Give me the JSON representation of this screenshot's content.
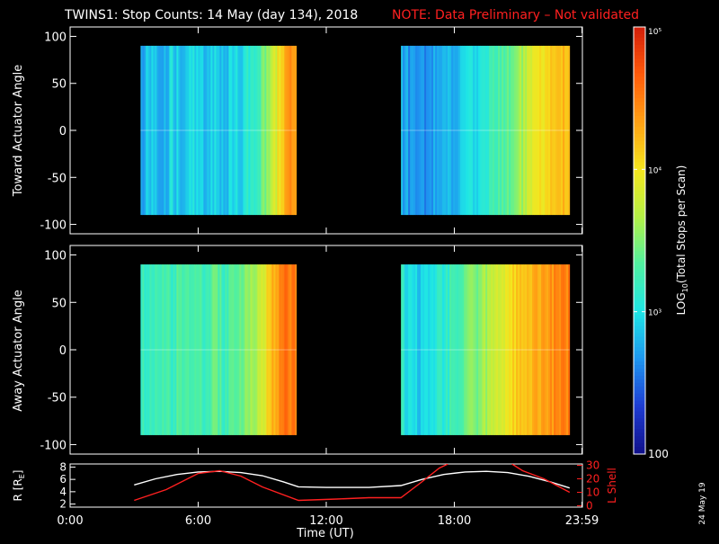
{
  "title": {
    "main": "TWINS1: Stop Counts: 14 May (day 134), 2018",
    "note": "NOTE: Data Preliminary – Not validated"
  },
  "colors": {
    "background": "#000000",
    "text": "#ffffff",
    "note": "#ff2020",
    "radius_line": "#ffffff",
    "lshell_line": "#ff2020"
  },
  "colorbar": {
    "label": "LOG10(Total Stops per Scan)",
    "label_base": "LOG",
    "label_sub": "10",
    "label_rest": "(Total Stops per Scan)",
    "tick_labels": [
      "100",
      "10³",
      "10⁴",
      "10⁵"
    ],
    "tick_values": [
      100,
      1000,
      10000,
      100000
    ],
    "range": [
      100,
      100000
    ],
    "scale": "log",
    "colormap": [
      "#10108a",
      "#1e3cd2",
      "#1e96f0",
      "#1ee6e6",
      "#50f0a0",
      "#b4f046",
      "#f5e61e",
      "#ffa014",
      "#ff5a0a",
      "#d21e0a"
    ]
  },
  "footer": {
    "date_stamp": "24 May 19"
  },
  "chart_data": [
    {
      "type": "heatmap",
      "panel": "toward",
      "ylabel": "Toward Actuator Angle",
      "ylim": [
        -110,
        110
      ],
      "yticks": [
        100,
        50,
        0,
        -50,
        -100
      ],
      "xlim": [
        0,
        24
      ],
      "x_ticks_shown": false,
      "segments": [
        {
          "x_start": 3.3,
          "x_end": 10.6,
          "y_range": [
            -90,
            90
          ]
        },
        {
          "x_start": 15.5,
          "x_end": 23.4,
          "y_range": [
            -90,
            90
          ]
        }
      ],
      "profile": [
        [
          3.3,
          2.75
        ],
        [
          3.6,
          2.85
        ],
        [
          4.0,
          2.9
        ],
        [
          4.4,
          2.8
        ],
        [
          4.8,
          2.95
        ],
        [
          5.2,
          2.85
        ],
        [
          5.6,
          3.0
        ],
        [
          6.0,
          2.9
        ],
        [
          6.4,
          2.8
        ],
        [
          6.8,
          3.0
        ],
        [
          7.2,
          2.8
        ],
        [
          7.6,
          2.95
        ],
        [
          8.0,
          2.9
        ],
        [
          8.4,
          3.1
        ],
        [
          8.8,
          3.25
        ],
        [
          9.2,
          3.5
        ],
        [
          9.6,
          3.8
        ],
        [
          10.0,
          4.2
        ],
        [
          10.3,
          4.4
        ],
        [
          10.6,
          4.45
        ],
        [
          15.5,
          2.8
        ],
        [
          15.8,
          2.7
        ],
        [
          16.2,
          2.6
        ],
        [
          16.6,
          2.65
        ],
        [
          17.0,
          2.7
        ],
        [
          17.4,
          2.75
        ],
        [
          17.8,
          2.8
        ],
        [
          18.2,
          2.85
        ],
        [
          18.6,
          2.9
        ],
        [
          19.0,
          3.0
        ],
        [
          19.4,
          3.1
        ],
        [
          19.8,
          3.2
        ],
        [
          20.2,
          3.3
        ],
        [
          20.6,
          3.4
        ],
        [
          21.0,
          3.55
        ],
        [
          21.4,
          3.7
        ],
        [
          21.8,
          3.9
        ],
        [
          22.2,
          4.0
        ],
        [
          22.6,
          4.1
        ],
        [
          23.0,
          4.2
        ],
        [
          23.4,
          4.3
        ]
      ]
    },
    {
      "type": "heatmap",
      "panel": "away",
      "ylabel": "Away Actuator Angle",
      "ylim": [
        -110,
        110
      ],
      "yticks": [
        100,
        50,
        0,
        -50,
        -100
      ],
      "xlim": [
        0,
        24
      ],
      "x_ticks_shown": false,
      "segments": [
        {
          "x_start": 3.3,
          "x_end": 10.6,
          "y_range": [
            -90,
            90
          ]
        },
        {
          "x_start": 15.5,
          "x_end": 23.4,
          "y_range": [
            -90,
            90
          ]
        }
      ],
      "profile": [
        [
          3.3,
          3.1
        ],
        [
          3.6,
          3.2
        ],
        [
          4.0,
          3.15
        ],
        [
          4.4,
          3.25
        ],
        [
          4.8,
          3.2
        ],
        [
          5.2,
          3.35
        ],
        [
          5.6,
          3.2
        ],
        [
          6.0,
          3.3
        ],
        [
          6.4,
          3.25
        ],
        [
          6.8,
          3.4
        ],
        [
          7.2,
          3.2
        ],
        [
          7.6,
          3.35
        ],
        [
          8.0,
          3.4
        ],
        [
          8.4,
          3.55
        ],
        [
          8.8,
          3.7
        ],
        [
          9.2,
          4.0
        ],
        [
          9.6,
          4.3
        ],
        [
          10.0,
          4.6
        ],
        [
          10.3,
          4.4
        ],
        [
          10.6,
          4.5
        ],
        [
          15.5,
          3.1
        ],
        [
          15.8,
          3.0
        ],
        [
          16.2,
          2.95
        ],
        [
          16.6,
          2.9
        ],
        [
          17.0,
          3.0
        ],
        [
          17.4,
          3.1
        ],
        [
          17.8,
          3.2
        ],
        [
          18.2,
          3.3
        ],
        [
          18.6,
          3.4
        ],
        [
          19.0,
          3.5
        ],
        [
          19.4,
          3.6
        ],
        [
          19.8,
          3.7
        ],
        [
          20.2,
          3.85
        ],
        [
          20.6,
          4.0
        ],
        [
          21.0,
          4.1
        ],
        [
          21.4,
          4.2
        ],
        [
          21.8,
          4.3
        ],
        [
          22.2,
          4.35
        ],
        [
          22.6,
          4.4
        ],
        [
          23.0,
          4.45
        ],
        [
          23.4,
          4.5
        ]
      ]
    },
    {
      "type": "line",
      "panel": "orbit",
      "ylabel_left": "R (RE)",
      "ylabel_left_base": "R [R",
      "ylabel_left_sub": "E",
      "ylabel_left_close": "]",
      "ylabel_right": "L Shell",
      "xlabel": "Time (UT)",
      "xlim": [
        0,
        24
      ],
      "x_tick_values": [
        0,
        6,
        12,
        18,
        23.98
      ],
      "x_tick_labels": [
        "0:00",
        "6:00",
        "12:00",
        "18:00",
        "23:59"
      ],
      "ylim_left": [
        1.5,
        8.5
      ],
      "ylim_right": [
        -1,
        31
      ],
      "yticks_left": [
        2,
        4,
        6,
        8
      ],
      "yticks_right": [
        0,
        10,
        20,
        30
      ],
      "series": [
        {
          "name": "R [RE]",
          "axis": "left",
          "color": "#ffffff",
          "x": [
            3.0,
            4.0,
            5.0,
            6.0,
            7.0,
            8.0,
            9.0,
            10.0,
            10.7,
            12.0,
            14.0,
            15.5,
            16.5,
            17.5,
            18.5,
            19.5,
            20.5,
            21.5,
            22.5,
            23.4
          ],
          "y": [
            5.1,
            6.1,
            6.8,
            7.2,
            7.3,
            7.1,
            6.6,
            5.6,
            4.8,
            4.7,
            4.7,
            5.0,
            6.0,
            6.8,
            7.2,
            7.3,
            7.1,
            6.5,
            5.6,
            4.6
          ]
        },
        {
          "name": "L Shell",
          "axis": "right",
          "color": "#ff2020",
          "x": [
            3.0,
            4.5,
            6.0,
            7.0,
            8.0,
            9.0,
            10.7,
            12.5,
            14.0,
            15.5,
            16.5,
            17.3,
            17.7,
            18.0,
            20.5,
            20.7,
            21.2,
            22.2,
            23.4
          ],
          "y": [
            4,
            12,
            24,
            26,
            22,
            14,
            4,
            5,
            6,
            6,
            18,
            28,
            31,
            null,
            null,
            31,
            26,
            20,
            10
          ]
        }
      ]
    }
  ]
}
